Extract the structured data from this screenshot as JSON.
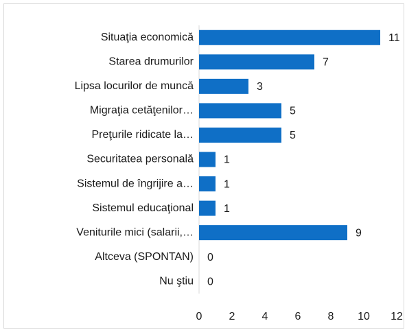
{
  "chart_data": {
    "type": "bar",
    "orientation": "horizontal",
    "categories": [
      "Situaţia economică",
      "Starea drumurilor",
      "Lipsa locurilor de muncă",
      "Migraţia cetăţenilor…",
      "Preţurile ridicate la…",
      "Securitatea personală",
      "Sistemul de îngrijire a…",
      "Sistemul educaţional",
      "Veniturile mici (salarii,…",
      "Altceva (SPONTAN)",
      "Nu ştiu"
    ],
    "values": [
      11,
      7,
      3,
      5,
      5,
      1,
      1,
      1,
      9,
      0,
      0
    ],
    "color": "#0f6fc6",
    "xlim": [
      0,
      12
    ],
    "xticks": [
      0,
      2,
      4,
      6,
      8,
      10,
      12
    ],
    "grid": false
  }
}
